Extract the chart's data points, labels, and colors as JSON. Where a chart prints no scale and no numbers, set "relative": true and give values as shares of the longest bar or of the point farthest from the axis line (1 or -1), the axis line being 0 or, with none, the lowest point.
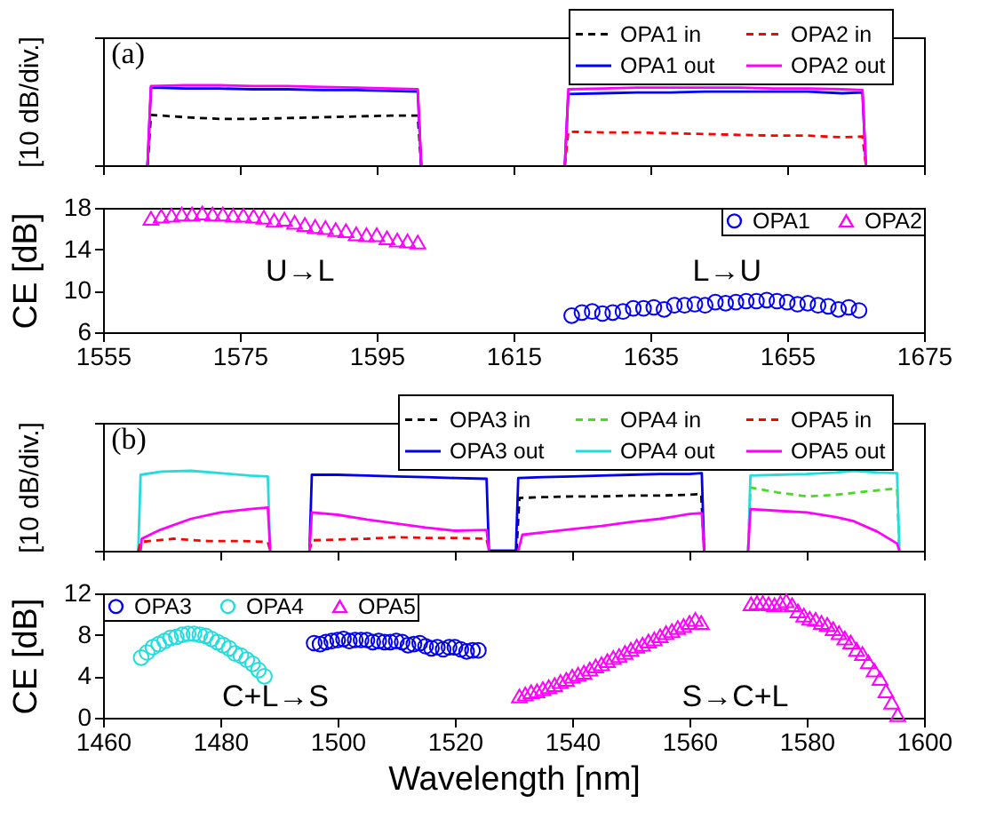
{
  "chart_data": [
    {
      "type": "line",
      "relative": true,
      "ylabel": "[10 dB/div.]",
      "annotations": [
        "(a)"
      ],
      "xlim": [
        1555,
        1675
      ],
      "xticks": [
        1555,
        1575,
        1595,
        1615,
        1635,
        1655,
        1675
      ],
      "tick_labels": false,
      "legend": "top right",
      "series": [
        {
          "name": "OPA1 in",
          "color": "#000000",
          "line_style": "dashed",
          "x": [
            1561.5,
            1562,
            1567,
            1572,
            1577,
            1582,
            1587,
            1592,
            1597,
            1601,
            1601.5
          ],
          "values": [
            0,
            0.63,
            0.6,
            0.58,
            0.58,
            0.59,
            0.6,
            0.61,
            0.62,
            0.62,
            0
          ]
        },
        {
          "name": "OPA1 out",
          "color": "#0000ff",
          "line_style": "solid",
          "x": [
            1561.5,
            1562,
            1567,
            1572,
            1577,
            1582,
            1587,
            1592,
            1597,
            1601,
            1601.5,
            1612,
            1622.5,
            1623,
            1628,
            1633,
            1638,
            1643,
            1648,
            1653,
            1658,
            1663,
            1666,
            1666.5
          ],
          "values": [
            0,
            0.97,
            0.96,
            0.96,
            0.95,
            0.95,
            0.94,
            0.94,
            0.93,
            0.92,
            0,
            null,
            0,
            0.89,
            0.9,
            0.91,
            0.91,
            0.92,
            0.92,
            0.92,
            0.92,
            0.9,
            0.91,
            0
          ]
        },
        {
          "name": "OPA2 in",
          "color": "#ff0000",
          "line_style": "dashed",
          "x": [
            1622.5,
            1623,
            1628,
            1633,
            1638,
            1643,
            1648,
            1653,
            1658,
            1663,
            1666,
            1666.5
          ],
          "values": [
            0,
            0.42,
            0.41,
            0.41,
            0.4,
            0.39,
            0.38,
            0.37,
            0.37,
            0.35,
            0.36,
            0
          ]
        },
        {
          "name": "OPA2 out",
          "color": "#ff00ff",
          "line_style": "solid",
          "x": [
            1561.5,
            1562,
            1567,
            1572,
            1577,
            1582,
            1587,
            1592,
            1597,
            1601,
            1601.5,
            1612,
            1622.5,
            1623,
            1628,
            1633,
            1638,
            1643,
            1648,
            1653,
            1658,
            1663,
            1666,
            1666.5
          ],
          "values": [
            0,
            0.99,
            1.0,
            1.0,
            0.99,
            0.99,
            0.98,
            0.97,
            0.96,
            0.95,
            0,
            null,
            0,
            0.95,
            0.96,
            0.97,
            0.97,
            0.97,
            0.97,
            0.96,
            0.96,
            0.95,
            0.94,
            0
          ]
        }
      ]
    },
    {
      "type": "scatter",
      "ylabel": "CE [dB]",
      "xlim": [
        1555,
        1675
      ],
      "xticks": [
        1555,
        1575,
        1595,
        1615,
        1635,
        1655,
        1675
      ],
      "ylim": [
        6,
        18
      ],
      "yticks": [
        6,
        10,
        14,
        18
      ],
      "legend": "top right",
      "annotations": [
        "U→L",
        "L→U"
      ],
      "series": [
        {
          "name": "OPA1",
          "color": "#0000ff",
          "marker": "circle",
          "x": [
            1623.5,
            1625,
            1626.5,
            1628,
            1629.5,
            1631,
            1632.5,
            1634,
            1635.5,
            1637,
            1638.5,
            1640,
            1641.5,
            1643,
            1644.5,
            1646,
            1647.5,
            1649,
            1650.5,
            1652,
            1653.5,
            1655,
            1656.5,
            1658,
            1659.5,
            1661,
            1662.5,
            1664,
            1665.5
          ],
          "values": [
            7.6,
            7.9,
            8.0,
            7.8,
            7.9,
            8.0,
            8.3,
            8.3,
            8.4,
            8.2,
            8.6,
            8.6,
            8.7,
            8.6,
            8.9,
            8.8,
            8.9,
            9.0,
            9.0,
            9.1,
            9.0,
            8.9,
            8.7,
            8.8,
            8.6,
            8.5,
            8.2,
            8.4,
            8.1
          ]
        },
        {
          "name": "OPA2",
          "color": "#ff00ff",
          "marker": "triangle",
          "x": [
            1562,
            1563.5,
            1565,
            1566.5,
            1568,
            1569.5,
            1571,
            1572.5,
            1574,
            1575.5,
            1577,
            1578.5,
            1580,
            1581.5,
            1583,
            1584.5,
            1586,
            1587.5,
            1589,
            1590.5,
            1592,
            1593.5,
            1595,
            1596.5,
            1598,
            1599.5,
            1601
          ],
          "values": [
            17.0,
            17.2,
            17.3,
            17.4,
            17.4,
            17.5,
            17.4,
            17.4,
            17.3,
            17.3,
            17.2,
            17.1,
            16.8,
            16.9,
            16.6,
            16.4,
            16.2,
            16.1,
            15.9,
            15.8,
            15.5,
            15.4,
            15.4,
            15.1,
            14.9,
            14.8,
            14.7
          ]
        }
      ]
    },
    {
      "type": "line",
      "relative": true,
      "ylabel": "[10 dB/div.]",
      "annotations": [
        "(b)"
      ],
      "xlim": [
        1460,
        1600
      ],
      "xticks": [
        1460,
        1480,
        1500,
        1520,
        1540,
        1560,
        1580,
        1600
      ],
      "tick_labels": false,
      "legend": "top right",
      "series": [
        {
          "name": "OPA3 in",
          "color": "#000000",
          "line_style": "dashed",
          "x": [
            1530.5,
            1531,
            1535,
            1540,
            1545,
            1550,
            1555,
            1560,
            1562,
            1562.5
          ],
          "values": [
            0,
            0.66,
            0.67,
            0.68,
            0.68,
            0.69,
            0.69,
            0.7,
            0.71,
            0
          ]
        },
        {
          "name": "OPA3 out",
          "color": "#0000ee",
          "line_style": "solid",
          "x": [
            1495.2,
            1495.6,
            1500,
            1505,
            1510,
            1515,
            1520,
            1525.4,
            1525.8,
            1530.4,
            1530.8,
            1535,
            1540,
            1545,
            1550,
            1555,
            1560,
            1562.1,
            1562.5
          ],
          "values": [
            0,
            0.95,
            0.95,
            0.94,
            0.93,
            0.92,
            0.91,
            0.9,
            0,
            0,
            0.91,
            0.92,
            0.93,
            0.94,
            0.95,
            0.96,
            0.96,
            0.97,
            0
          ]
        },
        {
          "name": "OPA4 in",
          "color": "#44dd22",
          "line_style": "dashed",
          "x": [
            1570,
            1570.4,
            1575,
            1580,
            1585,
            1590,
            1595.4,
            1595.8
          ],
          "values": [
            0,
            0.79,
            0.73,
            0.68,
            0.7,
            0.74,
            0.78,
            0
          ]
        },
        {
          "name": "OPA4 out",
          "color": "#22dddd",
          "line_style": "solid",
          "x": [
            1466,
            1466.4,
            1470,
            1475,
            1480,
            1485,
            1488.1,
            1488.5,
            1529,
            1570,
            1570.4,
            1575,
            1580,
            1585,
            1588,
            1592,
            1595.4,
            1595.8
          ],
          "values": [
            0,
            0.95,
            0.99,
            1.0,
            0.97,
            0.94,
            0.93,
            0,
            null,
            0,
            0.94,
            0.95,
            0.96,
            0.98,
            1.0,
            0.98,
            0.97,
            0
          ]
        },
        {
          "name": "OPA5 in",
          "color": "#ff0000",
          "line_style": "dashed",
          "x": [
            1466,
            1466.4,
            1472,
            1478,
            1484,
            1488.1,
            1488.5,
            1492,
            1495.2,
            1495.6,
            1500,
            1505,
            1510,
            1515,
            1520,
            1525.4,
            1525.8
          ],
          "values": [
            0,
            0.11,
            0.15,
            0.12,
            0.12,
            0.11,
            0,
            null,
            0,
            0.13,
            0.14,
            0.15,
            0.17,
            0.16,
            0.16,
            0.15,
            0
          ]
        },
        {
          "name": "OPA5 out",
          "color": "#ff00ff",
          "line_style": "solid",
          "x": [
            1466.4,
            1466.6,
            1469.7,
            1475,
            1480,
            1485,
            1488.1,
            1488.5,
            1492,
            1495.2,
            1495.6,
            1500,
            1505,
            1510,
            1515,
            1520,
            1525.4,
            1525.8,
            1528,
            1530.8,
            1531.5,
            1535,
            1540,
            1545,
            1550,
            1555,
            1560,
            1562.1,
            1562.5,
            1566,
            1570,
            1570.4,
            1575,
            1580,
            1585,
            1588,
            1592,
            1595.4,
            1595.8
          ],
          "values": [
            0,
            0.15,
            0.26,
            0.4,
            0.48,
            0.52,
            0.54,
            0,
            null,
            0,
            0.48,
            0.45,
            0.39,
            0.34,
            0.29,
            0.25,
            0.26,
            0,
            null,
            0,
            0.2,
            0.23,
            0.27,
            0.31,
            0.36,
            0.4,
            0.46,
            0.47,
            0,
            null,
            0,
            0.52,
            0.5,
            0.48,
            0.42,
            0.37,
            0.24,
            0.09,
            0
          ]
        }
      ]
    },
    {
      "type": "scatter",
      "ylabel": "CE [dB]",
      "xlabel": "Wavelength [nm]",
      "xlim": [
        1460,
        1600
      ],
      "xticks": [
        1460,
        1480,
        1500,
        1520,
        1540,
        1560,
        1580,
        1600
      ],
      "ylim": [
        0,
        12
      ],
      "yticks": [
        0,
        4,
        8,
        12
      ],
      "legend": "top left",
      "annotations": [
        "C+L→S",
        "S→C+L"
      ],
      "series": [
        {
          "name": "OPA3",
          "color": "#0000ee",
          "marker": "circle",
          "x": [
            1496,
            1497,
            1498,
            1499,
            1500,
            1501,
            1502,
            1503,
            1504,
            1505,
            1506,
            1507,
            1508,
            1509,
            1510,
            1511,
            1512,
            1513,
            1514,
            1515,
            1516,
            1517,
            1518,
            1519,
            1520,
            1521,
            1522,
            1523,
            1524
          ],
          "values": [
            7.2,
            7.1,
            7.3,
            7.4,
            7.5,
            7.6,
            7.4,
            7.5,
            7.5,
            7.5,
            7.3,
            7.4,
            7.3,
            7.3,
            7.4,
            7.3,
            7.0,
            7.1,
            7.2,
            6.9,
            6.7,
            6.8,
            6.6,
            6.8,
            6.8,
            6.6,
            6.4,
            6.5,
            6.5
          ]
        },
        {
          "name": "OPA4",
          "color": "#22dddd",
          "marker": "circle",
          "x": [
            1466.5,
            1467.5,
            1468.5,
            1469.5,
            1470.5,
            1471.5,
            1472.5,
            1473.5,
            1474.5,
            1475.5,
            1476.5,
            1477.5,
            1478.5,
            1479.5,
            1480.5,
            1481.5,
            1482.5,
            1483.5,
            1484.5,
            1485.5,
            1486.5,
            1487.5
          ],
          "values": [
            5.8,
            6.3,
            6.8,
            7.1,
            7.4,
            7.7,
            7.8,
            8.0,
            8.1,
            8.1,
            8.0,
            7.9,
            7.6,
            7.3,
            7.0,
            6.7,
            6.2,
            6.0,
            5.6,
            5.2,
            4.6,
            4.0
          ]
        },
        {
          "name": "OPA5",
          "color": "#ff00ff",
          "marker": "triangle",
          "x": [
            1531,
            1532,
            1533,
            1534,
            1535,
            1536,
            1537,
            1538,
            1539,
            1540,
            1541,
            1542,
            1543,
            1544,
            1545,
            1546,
            1547,
            1548,
            1549,
            1550,
            1551,
            1552,
            1553,
            1554,
            1555,
            1556,
            1557,
            1558,
            1559,
            1560,
            1561,
            1562,
            1570.5,
            1571.5,
            1572.5,
            1573.5,
            1574.5,
            1575.5,
            1576.5,
            1577.5,
            1578.5,
            1579.5,
            1580.5,
            1581.5,
            1582.5,
            1583.5,
            1584.5,
            1585.5,
            1586.5,
            1587.5,
            1588.5,
            1589.5,
            1590.5,
            1591.5,
            1592.5,
            1593.5,
            1594.5,
            1595.5
          ],
          "values": [
            2.1,
            2.3,
            2.5,
            2.6,
            2.8,
            3.0,
            3.2,
            3.5,
            3.7,
            4.0,
            4.2,
            4.4,
            4.7,
            5.0,
            5.2,
            5.5,
            5.8,
            6.0,
            6.3,
            6.6,
            6.9,
            7.1,
            7.4,
            7.6,
            7.9,
            8.2,
            8.4,
            8.7,
            8.9,
            9.2,
            9.5,
            9.2,
            11.0,
            11.1,
            11.1,
            11.0,
            10.9,
            11.1,
            11.3,
            10.9,
            10.3,
            9.9,
            9.6,
            9.5,
            9.2,
            9.0,
            8.6,
            8.2,
            7.7,
            7.3,
            6.6,
            6.2,
            5.4,
            4.6,
            3.8,
            2.6,
            1.5,
            0.3
          ]
        }
      ]
    }
  ]
}
